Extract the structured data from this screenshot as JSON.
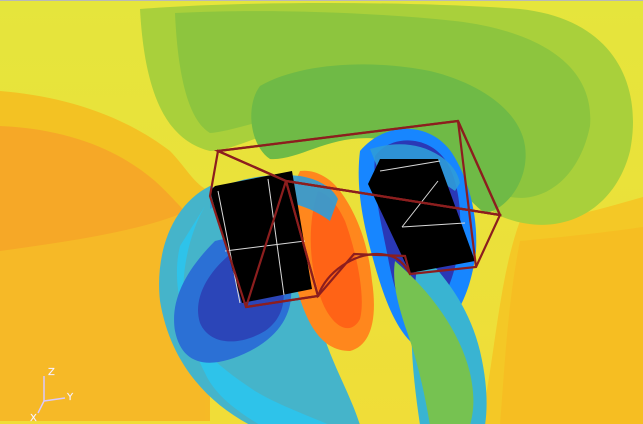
{
  "viewport": {
    "type": "cfd-contour-visualization",
    "colormap": [
      "#e3e53a",
      "#f7b41c",
      "#ff7b19",
      "#9ccb3f",
      "#67c14a",
      "#34a6b5",
      "#2ec7ec",
      "#1786ff",
      "#2e65d8",
      "#2a2e9e",
      "#000000"
    ]
  },
  "axes_triad": {
    "x_label": "X",
    "y_label": "Y",
    "z_label": "Z",
    "color": "#d9c8ff"
  },
  "wireframe": {
    "color": "#8c1e1e",
    "inner_line_color": "#d9d9d9"
  }
}
